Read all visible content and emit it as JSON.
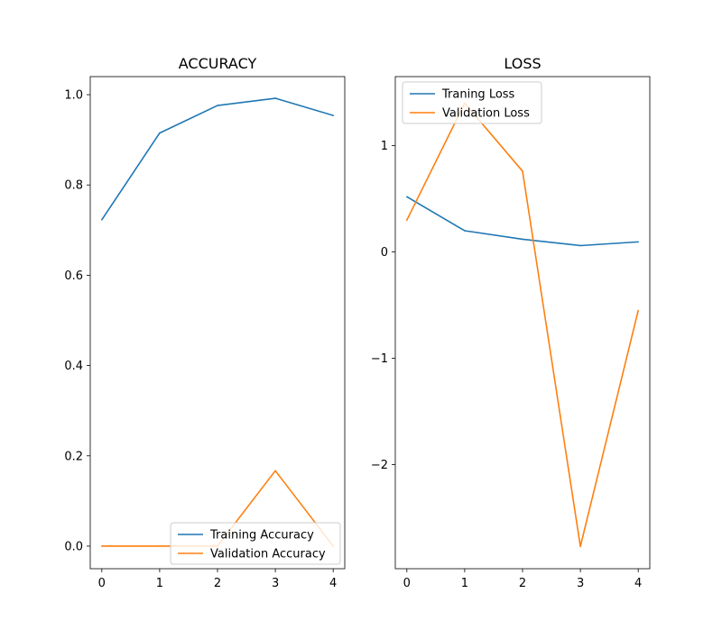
{
  "chart_data": [
    {
      "type": "line",
      "title": "ACCURACY",
      "xlabel": "",
      "ylabel": "",
      "x": [
        0,
        1,
        2,
        3,
        4
      ],
      "xticks": [
        "0",
        "1",
        "2",
        "3",
        "4"
      ],
      "yticks": [
        "0.0",
        "0.2",
        "0.4",
        "0.6",
        "0.8",
        "1.0"
      ],
      "xlim": [
        -0.2,
        4.2
      ],
      "ylim": [
        -0.05,
        1.04
      ],
      "grid": false,
      "legend_loc": "lower-right",
      "series": [
        {
          "name": "Training Accuracy",
          "color": "#1f77b4",
          "values": [
            0.723,
            0.915,
            0.976,
            0.992,
            0.954
          ]
        },
        {
          "name": "Validation Accuracy",
          "color": "#ff7f0e",
          "values": [
            0.0,
            0.0,
            0.0,
            0.167,
            0.0
          ]
        }
      ]
    },
    {
      "type": "line",
      "title": "LOSS",
      "xlabel": "",
      "ylabel": "",
      "x": [
        0,
        1,
        2,
        3,
        4
      ],
      "xticks": [
        "0",
        "1",
        "2",
        "3",
        "4"
      ],
      "yticks": [
        "−2",
        "−1",
        "0",
        "1"
      ],
      "xlim": [
        -0.2,
        4.2
      ],
      "ylim": [
        -2.98,
        1.65
      ],
      "grid": false,
      "legend_loc": "upper-left",
      "series": [
        {
          "name": "Traning Loss",
          "color": "#1f77b4",
          "values": [
            0.52,
            0.2,
            0.12,
            0.06,
            0.095
          ]
        },
        {
          "name": "Validation Loss",
          "color": "#ff7f0e",
          "values": [
            0.3,
            1.4,
            0.76,
            -2.77,
            -0.55
          ]
        }
      ]
    }
  ]
}
